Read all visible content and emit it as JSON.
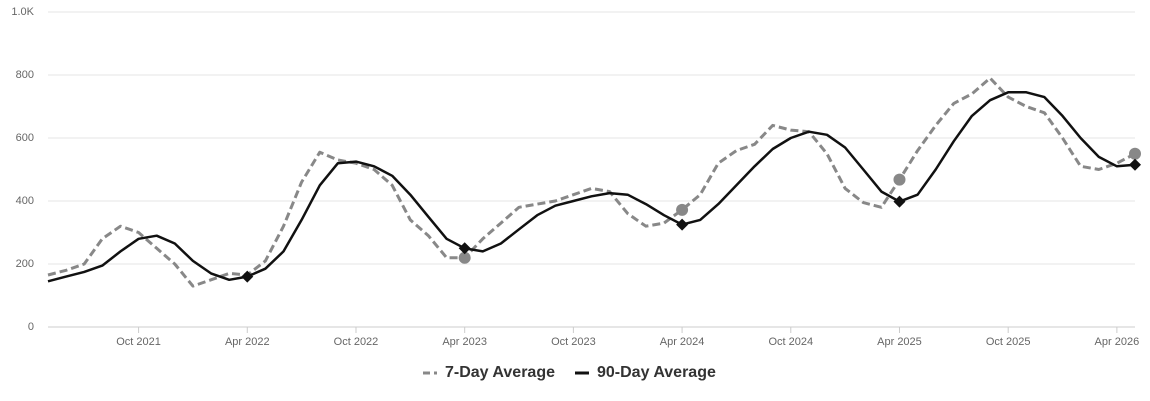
{
  "chart_data": {
    "type": "line",
    "x": [
      "2021-05",
      "2021-06",
      "2021-07",
      "2021-08",
      "2021-09",
      "2021-10",
      "2021-11",
      "2021-12",
      "2022-01",
      "2022-02",
      "2022-03",
      "2022-04",
      "2022-05",
      "2022-06",
      "2022-07",
      "2022-08",
      "2022-09",
      "2022-10",
      "2022-11",
      "2022-12",
      "2023-01",
      "2023-02",
      "2023-03",
      "2023-04",
      "2023-05",
      "2023-06",
      "2023-07",
      "2023-08",
      "2023-09",
      "2023-10",
      "2023-11",
      "2023-12",
      "2024-01",
      "2024-02",
      "2024-03",
      "2024-04",
      "2024-05",
      "2024-06",
      "2024-07",
      "2024-08",
      "2024-09",
      "2024-10",
      "2024-11",
      "2024-12",
      "2025-01",
      "2025-02",
      "2025-03",
      "2025-04",
      "2025-05",
      "2025-06",
      "2025-07",
      "2025-08",
      "2025-09",
      "2025-10",
      "2025-11",
      "2025-12",
      "2026-01",
      "2026-02",
      "2026-03",
      "2026-04",
      "2026-05"
    ],
    "series": [
      {
        "name": "7-Day Average",
        "color": "#888888",
        "dashed": true,
        "marker": "circle",
        "markers": [
          "2023-04",
          "2024-04",
          "2025-04",
          "2026-05"
        ],
        "values": [
          165,
          180,
          200,
          280,
          320,
          300,
          250,
          200,
          130,
          150,
          170,
          165,
          210,
          320,
          460,
          555,
          530,
          520,
          500,
          450,
          340,
          290,
          220,
          220,
          280,
          330,
          380,
          390,
          400,
          420,
          440,
          430,
          360,
          320,
          330,
          372,
          420,
          520,
          560,
          580,
          640,
          625,
          620,
          550,
          440,
          395,
          380,
          468,
          560,
          640,
          710,
          740,
          790,
          730,
          700,
          680,
          600,
          510,
          500,
          520,
          550
        ]
      },
      {
        "name": "90-Day Average",
        "color": "#111111",
        "dashed": false,
        "marker": "diamond",
        "markers": [
          "2022-04",
          "2023-04",
          "2024-04",
          "2025-04",
          "2026-05"
        ],
        "values": [
          145,
          160,
          175,
          195,
          240,
          280,
          290,
          265,
          210,
          170,
          150,
          160,
          185,
          240,
          340,
          450,
          520,
          525,
          510,
          480,
          420,
          350,
          280,
          250,
          240,
          265,
          310,
          355,
          385,
          400,
          415,
          425,
          420,
          390,
          355,
          325,
          340,
          390,
          450,
          510,
          565,
          600,
          620,
          610,
          570,
          500,
          430,
          398,
          420,
          500,
          590,
          670,
          720,
          745,
          745,
          730,
          670,
          600,
          540,
          510,
          515
        ]
      }
    ],
    "xlim": [
      "2021-05",
      "2026-05"
    ],
    "xticks": [
      {
        "value": "2021-10",
        "label": "Oct 2021"
      },
      {
        "value": "2022-04",
        "label": "Apr 2022"
      },
      {
        "value": "2022-10",
        "label": "Oct 2022"
      },
      {
        "value": "2023-04",
        "label": "Apr 2023"
      },
      {
        "value": "2023-10",
        "label": "Oct 2023"
      },
      {
        "value": "2024-04",
        "label": "Apr 2024"
      },
      {
        "value": "2024-10",
        "label": "Oct 2024"
      },
      {
        "value": "2025-04",
        "label": "Apr 2025"
      },
      {
        "value": "2025-10",
        "label": "Oct 2025"
      },
      {
        "value": "2026-04",
        "label": "Apr 2026"
      }
    ],
    "ylim": [
      0,
      1000
    ],
    "yticks": [
      0,
      200,
      400,
      600,
      800,
      {
        "value": 1000,
        "label": "1.0K"
      }
    ],
    "grid": true,
    "legend": "bottom"
  }
}
